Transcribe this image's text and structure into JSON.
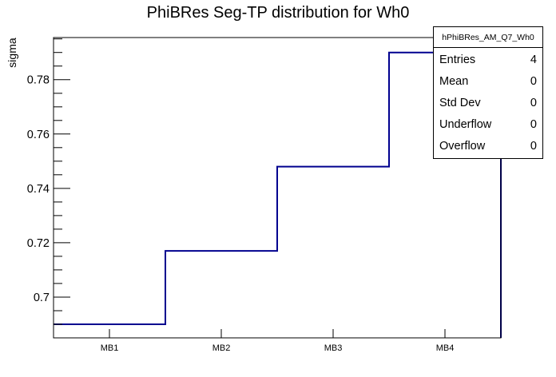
{
  "page": {
    "title": "PhiBRes Seg-TP distribution for Wh0"
  },
  "stats_box": {
    "header": "hPhiBRes_AM_Q7_Wh0",
    "rows": [
      {
        "label": "Entries",
        "value": "4"
      },
      {
        "label": "Mean",
        "value": "0"
      },
      {
        "label": "Std Dev",
        "value": "0"
      },
      {
        "label": "Underflow",
        "value": "0"
      },
      {
        "label": "Overflow",
        "value": "0"
      }
    ]
  },
  "chart_data": {
    "type": "bar",
    "subtype": "step-histogram-outline",
    "title": "PhiBRes Seg-TP distribution for Wh0",
    "xlabel": "",
    "ylabel": "sigma",
    "categories": [
      "MB1",
      "MB2",
      "MB3",
      "MB4"
    ],
    "values": [
      0.69,
      0.717,
      0.748,
      0.79
    ],
    "ylim": [
      0.685,
      0.7955
    ],
    "yticks": {
      "major": [
        0.7,
        0.72,
        0.74,
        0.76,
        0.78
      ],
      "labels": [
        "0.7",
        "0.72",
        "0.74",
        "0.76",
        "0.78"
      ],
      "minor_step": 0.005
    },
    "grid": false,
    "legend_position": "none",
    "line_color": "#00008f",
    "frame_color": "#000000",
    "background_color": "#ffffff"
  }
}
